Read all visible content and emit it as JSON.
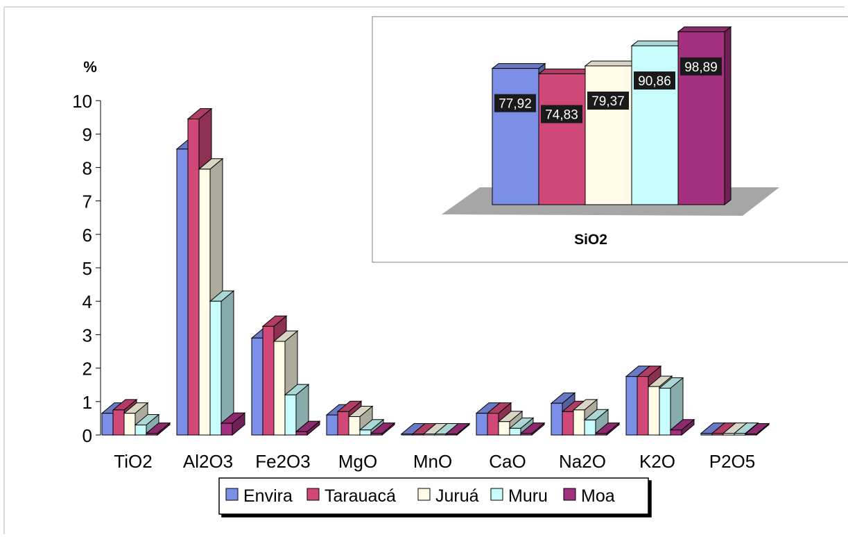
{
  "chart_data": [
    {
      "type": "bar",
      "ylabel": "%",
      "ylim": [
        0,
        10
      ],
      "yticks": [
        "0",
        "1",
        "2",
        "3",
        "4",
        "5",
        "6",
        "7",
        "8",
        "9",
        "10"
      ],
      "categories": [
        "TiO2",
        "Al2O3",
        "Fe2O3",
        "MgO",
        "MnO",
        "CaO",
        "Na2O",
        "K2O",
        "P2O5"
      ],
      "series": [
        {
          "name": "Envira",
          "values": [
            0.65,
            8.55,
            2.9,
            0.6,
            0.02,
            0.65,
            0.95,
            1.75,
            0.05
          ]
        },
        {
          "name": "Tarauacá",
          "values": [
            0.75,
            9.45,
            3.25,
            0.7,
            0.02,
            0.65,
            0.7,
            1.75,
            0.05
          ]
        },
        {
          "name": "Juruá",
          "values": [
            0.65,
            7.95,
            2.8,
            0.55,
            0.02,
            0.4,
            0.75,
            1.45,
            0.05
          ]
        },
        {
          "name": "Muru",
          "values": [
            0.3,
            4.0,
            1.2,
            0.15,
            0.02,
            0.2,
            0.45,
            1.4,
            0.05
          ]
        },
        {
          "name": "Moa",
          "values": [
            0.05,
            0.35,
            0.1,
            0.05,
            0.02,
            0.05,
            0.05,
            0.15,
            0.02
          ]
        }
      ],
      "legend_position": "bottom"
    },
    {
      "type": "bar",
      "categories": [
        "SiO2"
      ],
      "xlabel": "SiO2",
      "series": [
        {
          "name": "Envira",
          "values": [
            77.92
          ],
          "label": "77,92"
        },
        {
          "name": "Tarauacá",
          "values": [
            74.83
          ],
          "label": "74,83"
        },
        {
          "name": "Juruá",
          "values": [
            79.37
          ],
          "label": "79,37"
        },
        {
          "name": "Muru",
          "values": [
            90.86
          ],
          "label": "90,86"
        },
        {
          "name": "Moa",
          "values": [
            98.89
          ],
          "label": "98,89"
        }
      ]
    }
  ],
  "colors": {
    "Envira": "#7b8fe6",
    "Tarauacá": "#cf4878",
    "Juruá": "#fffbe6",
    "Muru": "#c8fcfc",
    "Moa": "#a3317f"
  }
}
